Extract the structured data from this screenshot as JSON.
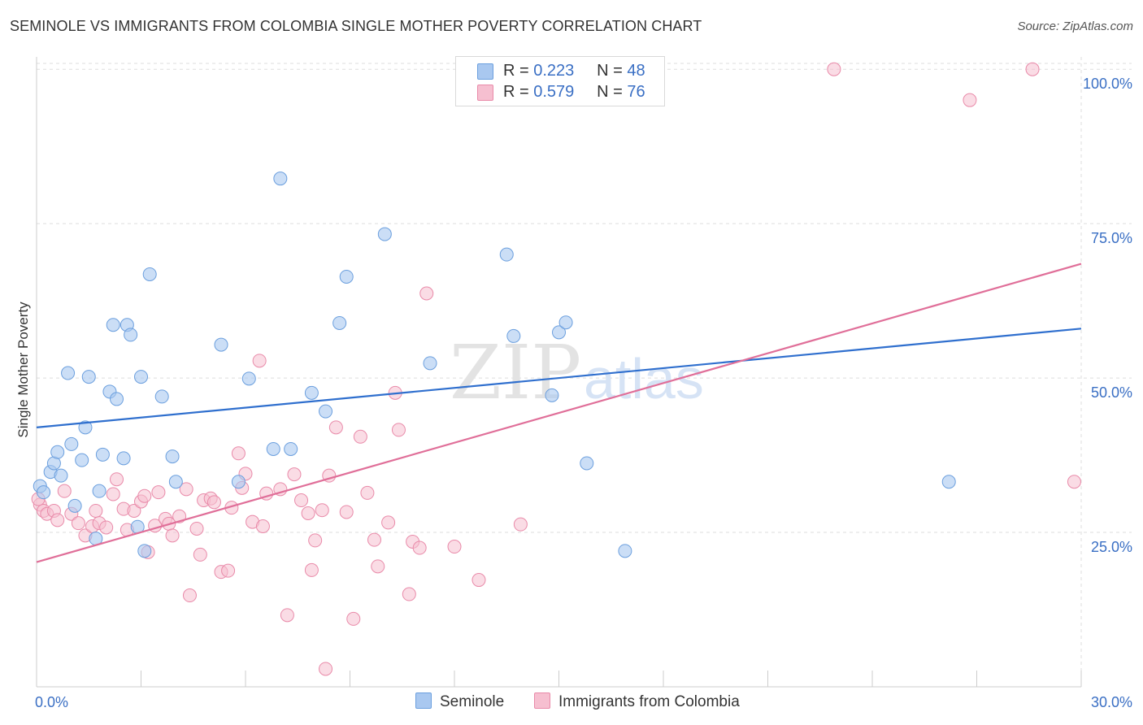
{
  "title": "SEMINOLE VS IMMIGRANTS FROM COLOMBIA SINGLE MOTHER POVERTY CORRELATION CHART",
  "source": "Source: ZipAtlas.com",
  "watermark": {
    "zip": "ZIP",
    "atlas": "atlas"
  },
  "legend": {
    "rows": [
      {
        "r_label": "R =",
        "r_value": "0.223",
        "n_label": "N =",
        "n_value": "48"
      },
      {
        "r_label": "R =",
        "r_value": "0.579",
        "n_label": "N =",
        "n_value": "76"
      }
    ]
  },
  "colors": {
    "seminole_fill": "#a9c8f0",
    "seminole_stroke": "#6b9fde",
    "seminole_line": "#2f6fce",
    "colombia_fill": "#f6bfd0",
    "colombia_stroke": "#e98aa9",
    "colombia_line": "#e06f99",
    "axis_label": "#3a6fc4",
    "grid": "#dddddd"
  },
  "chart_data": {
    "type": "scatter",
    "title": "SEMINOLE VS IMMIGRANTS FROM COLOMBIA SINGLE MOTHER POVERTY CORRELATION CHART",
    "xlabel": "",
    "ylabel": "Single Mother Poverty",
    "xlim": [
      0,
      30
    ],
    "ylim": [
      0,
      102
    ],
    "x_tick_labels": [
      {
        "value": 0,
        "label": "0.0%"
      },
      {
        "value": 30,
        "label": "30.0%"
      }
    ],
    "y_tick_labels": [
      {
        "value": 25,
        "label": "25.0%"
      },
      {
        "value": 50,
        "label": "50.0%"
      },
      {
        "value": 75,
        "label": "75.0%"
      },
      {
        "value": 100,
        "label": "100.0%"
      }
    ],
    "grid": true,
    "legend_position": "top-center",
    "series": [
      {
        "name": "Seminole",
        "R": 0.223,
        "N": 48,
        "trend": [
          [
            0,
            42.0
          ],
          [
            30,
            58.0
          ]
        ],
        "points": [
          [
            0.1,
            32.5
          ],
          [
            0.2,
            31.5
          ],
          [
            0.4,
            34.8
          ],
          [
            0.5,
            36.2
          ],
          [
            0.6,
            38.0
          ],
          [
            0.7,
            34.2
          ],
          [
            0.9,
            50.8
          ],
          [
            1.0,
            39.3
          ],
          [
            1.1,
            29.3
          ],
          [
            1.3,
            36.7
          ],
          [
            1.4,
            42.0
          ],
          [
            1.5,
            50.2
          ],
          [
            1.7,
            24.0
          ],
          [
            1.8,
            31.7
          ],
          [
            1.9,
            37.6
          ],
          [
            2.1,
            47.8
          ],
          [
            2.2,
            58.6
          ],
          [
            2.3,
            46.6
          ],
          [
            2.5,
            37.0
          ],
          [
            2.6,
            58.6
          ],
          [
            2.7,
            57.0
          ],
          [
            2.9,
            25.9
          ],
          [
            3.0,
            50.2
          ],
          [
            3.1,
            22.0
          ],
          [
            3.25,
            66.8
          ],
          [
            3.6,
            47.0
          ],
          [
            3.9,
            37.3
          ],
          [
            4.0,
            33.2
          ],
          [
            5.3,
            55.4
          ],
          [
            5.8,
            33.2
          ],
          [
            6.1,
            49.9
          ],
          [
            6.8,
            38.5
          ],
          [
            7.0,
            82.3
          ],
          [
            7.3,
            38.5
          ],
          [
            7.9,
            47.6
          ],
          [
            8.3,
            44.6
          ],
          [
            8.7,
            58.9
          ],
          [
            8.9,
            66.4
          ],
          [
            10.0,
            73.3
          ],
          [
            11.3,
            52.4
          ],
          [
            13.5,
            70.0
          ],
          [
            13.7,
            56.8
          ],
          [
            14.8,
            47.2
          ],
          [
            15.0,
            57.4
          ],
          [
            15.2,
            59.0
          ],
          [
            15.8,
            36.2
          ],
          [
            16.9,
            22.0
          ],
          [
            26.2,
            33.2
          ]
        ]
      },
      {
        "name": "Immigrants from Colombia",
        "R": 0.579,
        "N": 76,
        "trend": [
          [
            0,
            20.2
          ],
          [
            30,
            68.5
          ]
        ],
        "points": [
          [
            0.1,
            29.5
          ],
          [
            0.2,
            28.5
          ],
          [
            0.3,
            28.0
          ],
          [
            0.5,
            28.5
          ],
          [
            0.6,
            27.0
          ],
          [
            0.8,
            31.7
          ],
          [
            1.0,
            28.0
          ],
          [
            1.2,
            26.5
          ],
          [
            1.4,
            24.5
          ],
          [
            1.6,
            26.0
          ],
          [
            1.7,
            28.5
          ],
          [
            1.8,
            26.5
          ],
          [
            2.0,
            25.8
          ],
          [
            2.2,
            31.2
          ],
          [
            2.3,
            33.6
          ],
          [
            2.5,
            28.8
          ],
          [
            2.6,
            25.4
          ],
          [
            2.8,
            28.5
          ],
          [
            3.0,
            30.0
          ],
          [
            3.1,
            30.9
          ],
          [
            3.2,
            21.8
          ],
          [
            3.4,
            26.1
          ],
          [
            3.5,
            31.5
          ],
          [
            3.7,
            27.2
          ],
          [
            3.8,
            26.4
          ],
          [
            3.9,
            24.5
          ],
          [
            4.1,
            27.6
          ],
          [
            4.3,
            32.0
          ],
          [
            4.4,
            14.8
          ],
          [
            4.6,
            25.6
          ],
          [
            4.7,
            21.4
          ],
          [
            4.8,
            30.2
          ],
          [
            5.0,
            30.5
          ],
          [
            5.1,
            29.9
          ],
          [
            5.3,
            18.6
          ],
          [
            5.5,
            18.8
          ],
          [
            5.6,
            29.0
          ],
          [
            5.8,
            37.8
          ],
          [
            5.9,
            32.2
          ],
          [
            6.0,
            34.5
          ],
          [
            6.2,
            26.7
          ],
          [
            6.4,
            52.8
          ],
          [
            6.5,
            26.0
          ],
          [
            6.6,
            31.3
          ],
          [
            7.0,
            32.0
          ],
          [
            7.2,
            11.6
          ],
          [
            7.4,
            34.4
          ],
          [
            7.6,
            30.2
          ],
          [
            7.8,
            28.1
          ],
          [
            7.9,
            18.9
          ],
          [
            8.0,
            23.7
          ],
          [
            8.2,
            28.6
          ],
          [
            8.3,
            2.9
          ],
          [
            8.4,
            34.2
          ],
          [
            8.6,
            42.0
          ],
          [
            8.9,
            28.3
          ],
          [
            9.1,
            11.0
          ],
          [
            9.3,
            40.5
          ],
          [
            9.5,
            31.4
          ],
          [
            9.7,
            23.8
          ],
          [
            9.8,
            19.5
          ],
          [
            10.1,
            26.6
          ],
          [
            10.3,
            47.6
          ],
          [
            10.4,
            41.6
          ],
          [
            10.7,
            15.0
          ],
          [
            10.8,
            23.5
          ],
          [
            11.0,
            22.5
          ],
          [
            11.2,
            63.7
          ],
          [
            12.0,
            22.7
          ],
          [
            12.7,
            17.3
          ],
          [
            13.9,
            26.3
          ],
          [
            22.9,
            100.0
          ],
          [
            26.8,
            95.0
          ],
          [
            28.6,
            100.0
          ],
          [
            29.8,
            33.2
          ],
          [
            0.05,
            30.4
          ]
        ]
      }
    ]
  },
  "bottom_legend": {
    "seminole": "Seminole",
    "colombia": "Immigrants from Colombia"
  }
}
